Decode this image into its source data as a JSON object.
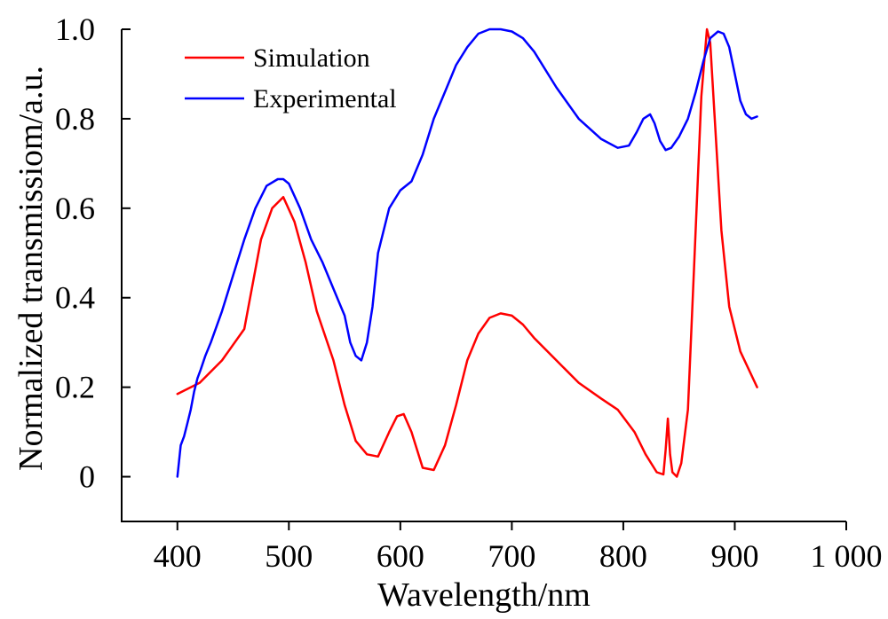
{
  "chart_data": {
    "type": "line",
    "xlabel": "Wavelength/nm",
    "ylabel": "Normalized transmissiom/a.u.",
    "xlim": [
      350,
      1000
    ],
    "ylim": [
      -0.1,
      1.0
    ],
    "xticks": [
      400,
      500,
      600,
      700,
      800,
      900,
      1000
    ],
    "xtick_labels": [
      "400",
      "500",
      "600",
      "700",
      "800",
      "900",
      "1 000"
    ],
    "yticks": [
      0,
      0.2,
      0.4,
      0.6,
      0.8,
      1.0
    ],
    "ytick_labels": [
      "0",
      "0.2",
      "0.4",
      "0.6",
      "0.8",
      "1.0"
    ],
    "grid": false,
    "legend_position": "top-left",
    "series": [
      {
        "name": "Simulation",
        "color": "#ff0000",
        "x": [
          400,
          420,
          440,
          460,
          475,
          485,
          495,
          505,
          515,
          525,
          540,
          550,
          560,
          570,
          580,
          590,
          597,
          603,
          610,
          620,
          630,
          640,
          650,
          660,
          670,
          680,
          690,
          700,
          710,
          720,
          740,
          760,
          780,
          795,
          810,
          820,
          830,
          836,
          838,
          840,
          842,
          844,
          848,
          852,
          858,
          864,
          870,
          875,
          878,
          882,
          888,
          895,
          905,
          920
        ],
        "y": [
          0.185,
          0.21,
          0.26,
          0.33,
          0.53,
          0.6,
          0.625,
          0.57,
          0.48,
          0.37,
          0.26,
          0.16,
          0.08,
          0.05,
          0.045,
          0.1,
          0.135,
          0.14,
          0.1,
          0.02,
          0.015,
          0.07,
          0.16,
          0.26,
          0.32,
          0.355,
          0.365,
          0.36,
          0.34,
          0.31,
          0.26,
          0.21,
          0.175,
          0.15,
          0.1,
          0.05,
          0.01,
          0.005,
          0.06,
          0.13,
          0.05,
          0.01,
          0.0,
          0.03,
          0.15,
          0.5,
          0.85,
          1.0,
          0.97,
          0.8,
          0.55,
          0.38,
          0.28,
          0.2
        ]
      },
      {
        "name": "Experimental",
        "color": "#0000ff",
        "x": [
          400,
          403,
          406,
          409,
          412,
          415,
          418,
          421,
          425,
          430,
          440,
          450,
          460,
          470,
          480,
          490,
          495,
          500,
          510,
          520,
          530,
          540,
          550,
          555,
          560,
          565,
          570,
          575,
          580,
          590,
          600,
          610,
          620,
          630,
          640,
          650,
          660,
          670,
          680,
          690,
          700,
          710,
          720,
          740,
          760,
          780,
          795,
          805,
          812,
          818,
          824,
          828,
          833,
          838,
          843,
          850,
          858,
          865,
          872,
          878,
          885,
          890,
          895,
          900,
          905,
          910,
          915,
          920
        ],
        "y": [
          0.0,
          0.07,
          0.09,
          0.12,
          0.15,
          0.19,
          0.22,
          0.24,
          0.27,
          0.3,
          0.37,
          0.45,
          0.53,
          0.6,
          0.65,
          0.665,
          0.665,
          0.655,
          0.6,
          0.53,
          0.48,
          0.42,
          0.36,
          0.3,
          0.27,
          0.26,
          0.3,
          0.38,
          0.5,
          0.6,
          0.64,
          0.66,
          0.72,
          0.8,
          0.86,
          0.92,
          0.96,
          0.99,
          1.0,
          1.0,
          0.995,
          0.98,
          0.95,
          0.87,
          0.8,
          0.755,
          0.735,
          0.74,
          0.77,
          0.8,
          0.81,
          0.79,
          0.75,
          0.73,
          0.735,
          0.76,
          0.8,
          0.86,
          0.93,
          0.98,
          0.995,
          0.99,
          0.96,
          0.9,
          0.84,
          0.81,
          0.8,
          0.805
        ]
      }
    ]
  }
}
